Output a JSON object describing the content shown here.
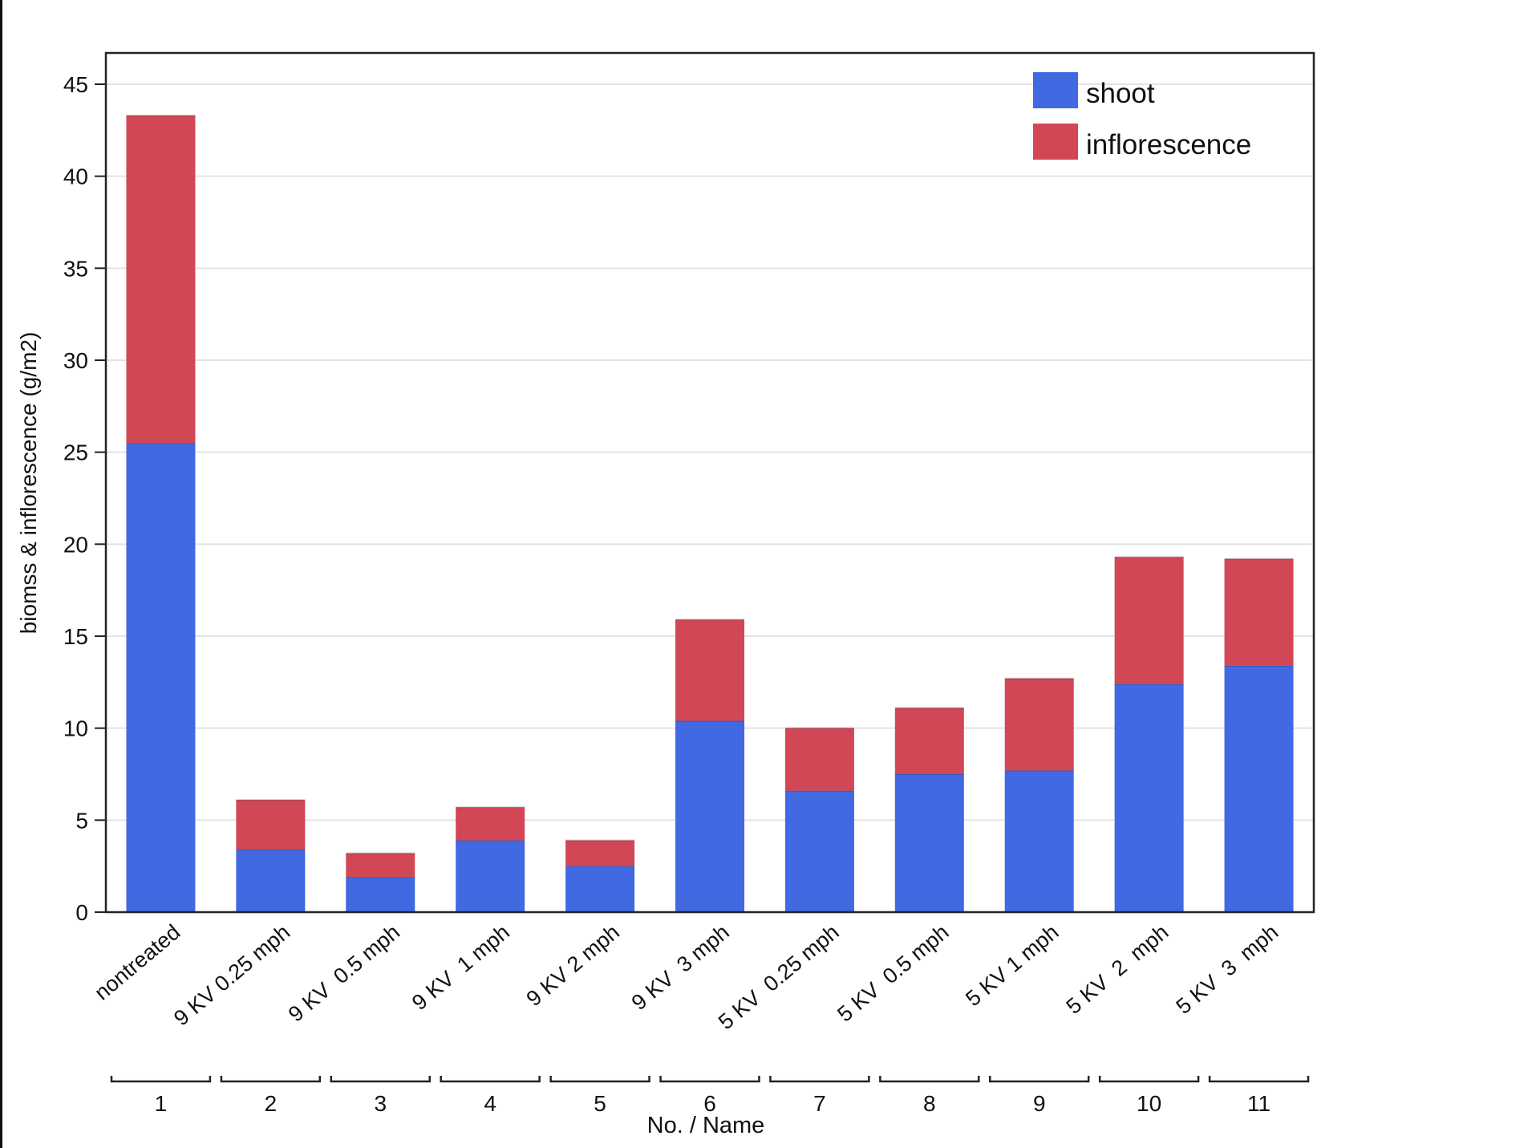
{
  "chart_data": {
    "type": "bar",
    "stacked": true,
    "title": "",
    "xlabel": "No. / Name",
    "ylabel": "biomss & inflorescence (g/m2)",
    "ylim": [
      0,
      45
    ],
    "yticks": [
      0,
      5,
      10,
      15,
      20,
      25,
      30,
      35,
      40,
      45
    ],
    "grid": true,
    "legend_position": "top-right",
    "numbers": [
      "1",
      "2",
      "3",
      "4",
      "5",
      "6",
      "7",
      "8",
      "9",
      "10",
      "11"
    ],
    "categories": [
      "nontreated",
      "9 KV 0.25 mph",
      "9 KV  0.5 mph",
      "9 KV  1 mph",
      "9 KV 2 mph",
      "9 KV  3 mph",
      "5 KV  0.25 mph",
      "5 KV  0.5 mph",
      "5 KV 1 mph",
      "5 KV  2  mph",
      "5 KV  3  mph"
    ],
    "series": [
      {
        "name": "shoot",
        "color": "#4169e1",
        "values": [
          25.5,
          3.4,
          1.9,
          3.9,
          2.5,
          10.4,
          6.6,
          7.5,
          7.7,
          12.4,
          13.4
        ]
      },
      {
        "name": "inflorescence",
        "color": "#d24756",
        "values": [
          17.8,
          2.7,
          1.3,
          1.8,
          1.4,
          5.5,
          3.4,
          3.6,
          5.0,
          6.9,
          5.8
        ]
      }
    ]
  }
}
